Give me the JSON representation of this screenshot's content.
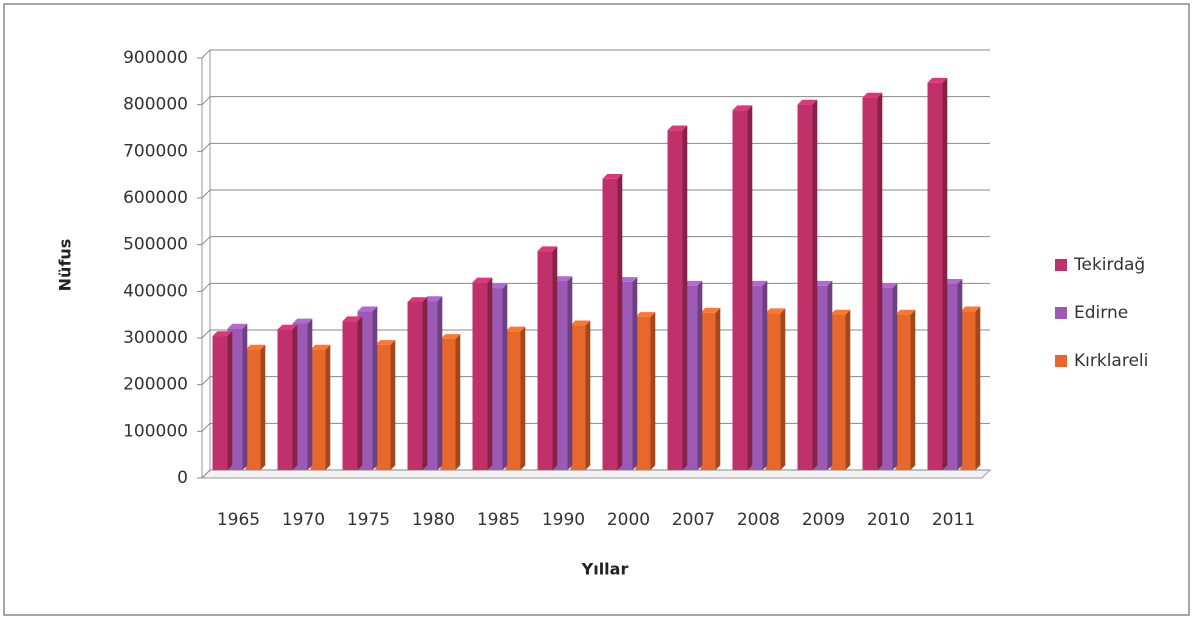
{
  "chart_data": {
    "type": "bar",
    "x_label": "Yıllar",
    "y_label": "Nüfus",
    "categories": [
      "1965",
      "1970",
      "1975",
      "1980",
      "1985",
      "1990",
      "2000",
      "2007",
      "2008",
      "2009",
      "2010",
      "2011"
    ],
    "series": [
      {
        "name": "Tekirdağ",
        "color": "#c0306a",
        "values": [
          287000,
          301000,
          319000,
          360000,
          402000,
          469000,
          624000,
          728000,
          771000,
          783000,
          798000,
          830000
        ]
      },
      {
        "name": "Edirne",
        "color": "#9b5bb5",
        "values": [
          303000,
          314000,
          340000,
          362000,
          389000,
          405000,
          403000,
          395000,
          395000,
          395000,
          390000,
          399000
        ]
      },
      {
        "name": "Kırklareli",
        "color": "#e8672a",
        "values": [
          258000,
          258000,
          268000,
          281000,
          297000,
          310000,
          328000,
          337000,
          336000,
          333000,
          333000,
          340000
        ]
      }
    ],
    "ylim": [
      0,
      900000
    ],
    "yticks": [
      0,
      100000,
      200000,
      300000,
      400000,
      500000,
      600000,
      700000,
      800000,
      900000
    ],
    "grid": true,
    "legend": "right"
  }
}
